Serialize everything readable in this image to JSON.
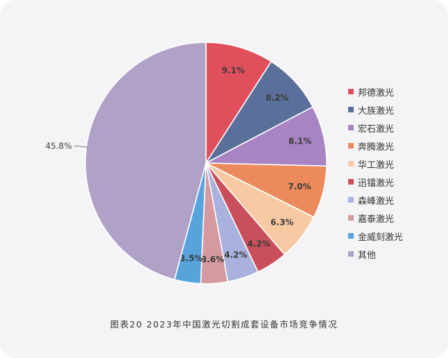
{
  "colors": {
    "background": "#f4f4f6"
  },
  "caption": "图表20  2023年中国激光切割成套设备市场竞争情况",
  "chart_data": {
    "type": "pie",
    "title": "",
    "legend_position": "right",
    "slices": [
      {
        "name": "邦德激光",
        "value": 9.1,
        "label": "9.1%",
        "color": "#e0505c"
      },
      {
        "name": "大族激光",
        "value": 8.2,
        "label": "8.2%",
        "color": "#5a6f99"
      },
      {
        "name": "宏石激光",
        "value": 8.1,
        "label": "8.1%",
        "color": "#a884c4"
      },
      {
        "name": "奔腾激光",
        "value": 7.0,
        "label": "7.0%",
        "color": "#ec8a5c"
      },
      {
        "name": "华工激光",
        "value": 6.3,
        "label": "6.3%",
        "color": "#f7c9a3"
      },
      {
        "name": "迅镭激光",
        "value": 4.2,
        "label": "4.2%",
        "color": "#c9505a"
      },
      {
        "name": "森峰激光",
        "value": 4.2,
        "label": "4.2%",
        "color": "#a9b1de"
      },
      {
        "name": "嘉泰激光",
        "value": 3.6,
        "label": "3.6%",
        "color": "#d59a9f"
      },
      {
        "name": "金威刻激光",
        "value": 3.5,
        "label": "3.5%",
        "color": "#57a4dd"
      },
      {
        "name": "其他",
        "value": 45.8,
        "label": "45.8%",
        "color": "#b0a1c6"
      }
    ]
  }
}
